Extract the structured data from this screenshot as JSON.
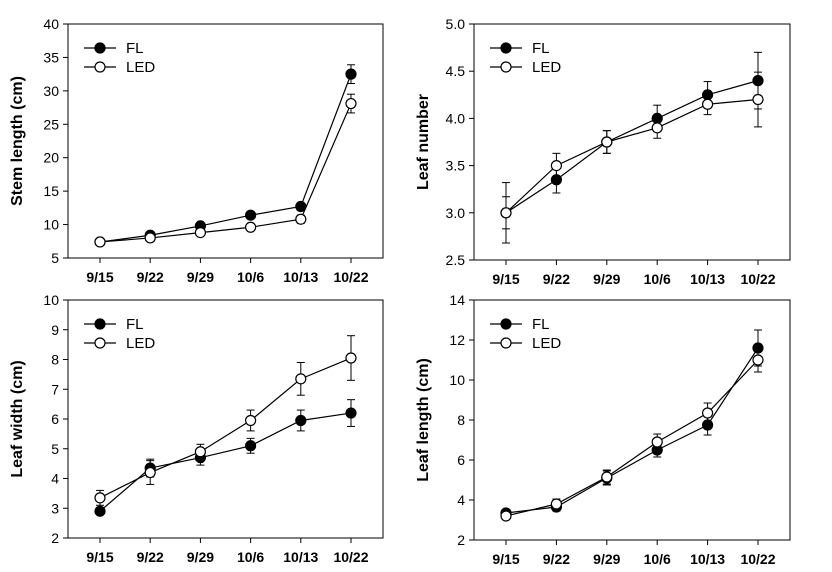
{
  "colors": {
    "fl_marker": "#000000",
    "led_marker": "#ffffff",
    "line": "#000000"
  },
  "chart_data": [
    {
      "type": "line",
      "id": "stem-length",
      "categories": [
        "9/15",
        "9/22",
        "9/29",
        "10/6",
        "10/13",
        "10/22"
      ],
      "ylabel": "Stem length (cm)",
      "ylim": [
        5,
        40
      ],
      "yticks": [
        5,
        10,
        15,
        20,
        25,
        30,
        35,
        40
      ],
      "ytick_labels": [
        "5",
        "10",
        "15",
        "20",
        "25",
        "30",
        "35",
        "40"
      ],
      "legend": "top-left",
      "series": [
        {
          "name": "FL",
          "marker": "filled-circle",
          "values": [
            7.4,
            8.4,
            9.8,
            11.4,
            12.7,
            32.5
          ],
          "errors": [
            0.3,
            0.4,
            0.4,
            0.5,
            0.5,
            1.4
          ]
        },
        {
          "name": "LED",
          "marker": "open-circle",
          "values": [
            7.4,
            8.0,
            8.8,
            9.6,
            10.8,
            28.1
          ],
          "errors": [
            0.3,
            0.4,
            0.4,
            0.5,
            0.6,
            1.4
          ]
        }
      ]
    },
    {
      "type": "line",
      "id": "leaf-number",
      "categories": [
        "9/15",
        "9/22",
        "9/29",
        "10/6",
        "10/13",
        "10/22"
      ],
      "ylabel": "Leaf number",
      "ylim": [
        2.5,
        5.0
      ],
      "yticks": [
        2.5,
        3.0,
        3.5,
        4.0,
        4.5,
        5.0
      ],
      "ytick_labels": [
        "2.5",
        "3.0",
        "3.5",
        "4.0",
        "4.5",
        "5.0"
      ],
      "legend": "top-left",
      "series": [
        {
          "name": "FL",
          "marker": "filled-circle",
          "values": [
            3.0,
            3.35,
            3.75,
            4.0,
            4.25,
            4.4
          ],
          "errors": [
            0.32,
            0.14,
            0.12,
            0.14,
            0.14,
            0.3
          ]
        },
        {
          "name": "LED",
          "marker": "open-circle",
          "values": [
            3.0,
            3.5,
            3.75,
            3.9,
            4.15,
            4.2
          ],
          "errors": [
            0.17,
            0.13,
            0.12,
            0.11,
            0.11,
            0.29
          ]
        }
      ]
    },
    {
      "type": "line",
      "id": "leaf-width",
      "categories": [
        "9/15",
        "9/22",
        "9/29",
        "10/6",
        "10/13",
        "10/22"
      ],
      "ylabel": "Leaf width (cm)",
      "ylim": [
        2,
        10
      ],
      "yticks": [
        2,
        3,
        4,
        5,
        6,
        7,
        8,
        9,
        10
      ],
      "ytick_labels": [
        "2",
        "3",
        "4",
        "5",
        "6",
        "7",
        "8",
        "9",
        "10"
      ],
      "legend": "top-left",
      "series": [
        {
          "name": "FL",
          "marker": "filled-circle",
          "values": [
            2.9,
            4.35,
            4.7,
            5.1,
            5.95,
            6.2
          ],
          "errors": [
            0.1,
            0.3,
            0.25,
            0.25,
            0.35,
            0.45
          ]
        },
        {
          "name": "LED",
          "marker": "open-circle",
          "values": [
            3.35,
            4.2,
            4.9,
            5.95,
            7.35,
            8.05
          ],
          "errors": [
            0.25,
            0.4,
            0.25,
            0.35,
            0.55,
            0.75
          ]
        }
      ]
    },
    {
      "type": "line",
      "id": "leaf-length",
      "categories": [
        "9/15",
        "9/22",
        "9/29",
        "10/6",
        "10/13",
        "10/22"
      ],
      "ylabel": "Leaf length (cm)",
      "ylim": [
        2,
        14
      ],
      "yticks": [
        2,
        4,
        6,
        8,
        10,
        12,
        14
      ],
      "ytick_labels": [
        "2",
        "4",
        "6",
        "8",
        "10",
        "12",
        "14"
      ],
      "legend": "top-left",
      "series": [
        {
          "name": "FL",
          "marker": "filled-circle",
          "values": [
            3.35,
            3.65,
            5.1,
            6.5,
            7.75,
            11.6
          ],
          "errors": [
            0.15,
            0.2,
            0.35,
            0.35,
            0.5,
            0.9
          ]
        },
        {
          "name": "LED",
          "marker": "open-circle",
          "values": [
            3.2,
            3.8,
            5.15,
            6.9,
            8.35,
            11.0
          ],
          "errors": [
            0.15,
            0.25,
            0.35,
            0.4,
            0.5,
            0.6
          ]
        }
      ]
    }
  ]
}
